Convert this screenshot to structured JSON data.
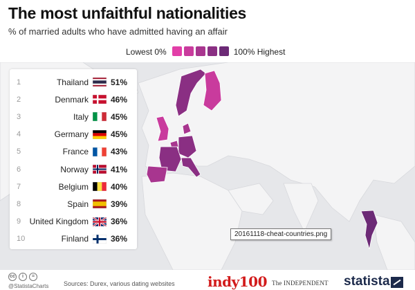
{
  "header": {
    "title": "The most unfaithful nationalities",
    "subtitle": "% of married adults who have admitted having an affair"
  },
  "legend": {
    "low_label": "Lowest 0%",
    "high_label": "100% Highest",
    "colors": [
      "#e23fa8",
      "#c93b9d",
      "#a8358f",
      "#8a2f83",
      "#6c2a76"
    ]
  },
  "tooltip": {
    "text": "20161118-cheat-countries.png"
  },
  "footer": {
    "handle": "@StatistaCharts",
    "source": "Sources: Durex, various dating websites",
    "indy": "indy100",
    "independent": "The INDEPENDENT",
    "statista": "statista"
  },
  "chart_data": {
    "type": "table",
    "title": "The most unfaithful nationalities",
    "subtitle": "% of married adults who have admitted having an affair",
    "unit": "%",
    "rows": [
      {
        "rank": "1",
        "country": "Thailand",
        "flag": "thailand",
        "value": 51
      },
      {
        "rank": "2",
        "country": "Denmark",
        "flag": "denmark",
        "value": 46
      },
      {
        "rank": "3",
        "country": "Italy",
        "flag": "italy",
        "value": 45
      },
      {
        "rank": "4",
        "country": "Germany",
        "flag": "germany",
        "value": 45
      },
      {
        "rank": "5",
        "country": "France",
        "flag": "france",
        "value": 43
      },
      {
        "rank": "6",
        "country": "Norway",
        "flag": "norway",
        "value": 41
      },
      {
        "rank": "7",
        "country": "Belgium",
        "flag": "belgium",
        "value": 40
      },
      {
        "rank": "8",
        "country": "Spain",
        "flag": "spain",
        "value": 39
      },
      {
        "rank": "9",
        "country": "United Kingdom",
        "flag": "united-kingdom",
        "value": 36
      },
      {
        "rank": "10",
        "country": "Finland",
        "flag": "finland",
        "value": 36
      }
    ]
  }
}
